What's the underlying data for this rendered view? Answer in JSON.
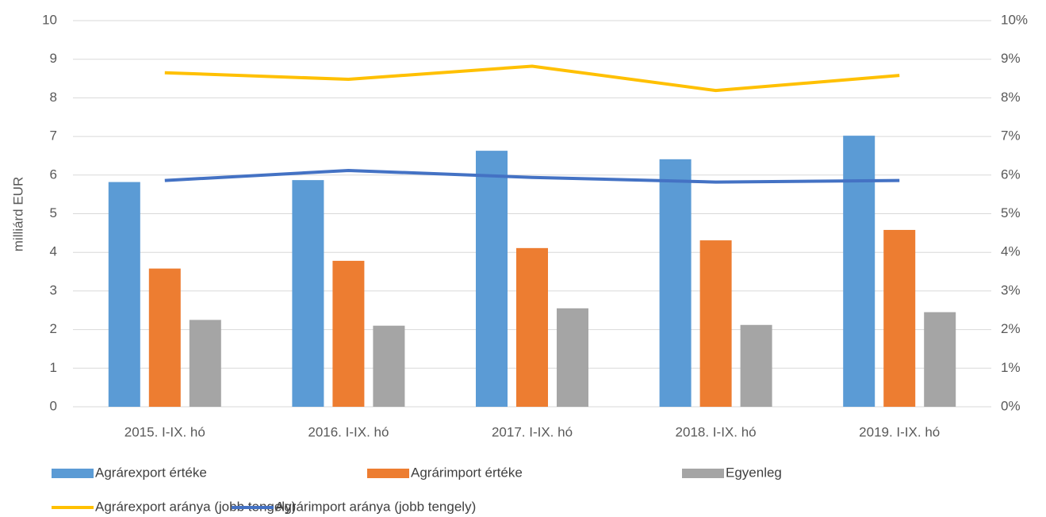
{
  "chart_data": {
    "type": "bar",
    "y_label": "milliárd EUR",
    "categories": [
      "2015. I-IX. hó",
      "2016. I-IX. hó",
      "2017. I-IX. hó",
      "2018. I-IX. hó",
      "2019. I-IX. hó"
    ],
    "series": [
      {
        "name": "Agrárexport értéke",
        "color": "#5b9bd5",
        "values": [
          5.82,
          5.87,
          6.63,
          6.41,
          7.02
        ]
      },
      {
        "name": "Agrárimport értéke",
        "color": "#ed7d31",
        "values": [
          3.58,
          3.78,
          4.11,
          4.31,
          4.58
        ]
      },
      {
        "name": "Egyenleg",
        "color": "#a5a5a5",
        "values": [
          2.25,
          2.1,
          2.55,
          2.12,
          2.45
        ]
      },
      {
        "name": "Agrárexport aránya (jobb tengely)",
        "color": "#ffc000",
        "type": "line",
        "axis": "y2",
        "values": [
          8.65,
          8.48,
          8.82,
          8.19,
          8.58
        ]
      },
      {
        "name": "Agrárimport aránya (jobb tengely)",
        "color": "#4472c4",
        "type": "line",
        "axis": "y2",
        "values": [
          5.86,
          6.12,
          5.94,
          5.82,
          5.86
        ]
      }
    ],
    "ylim": [
      0,
      10
    ],
    "yticks": [
      0,
      1,
      2,
      3,
      4,
      5,
      6,
      7,
      8,
      9,
      10
    ],
    "y2lim": [
      0,
      10
    ],
    "y2ticks": [
      {
        "value": 0,
        "label": "0%"
      },
      {
        "value": 1,
        "label": "1%"
      },
      {
        "value": 2,
        "label": "2%"
      },
      {
        "value": 3,
        "label": "3%"
      },
      {
        "value": 4,
        "label": "4%"
      },
      {
        "value": 5,
        "label": "5%"
      },
      {
        "value": 6,
        "label": "6%"
      },
      {
        "value": 7,
        "label": "7%"
      },
      {
        "value": 8,
        "label": "8%"
      },
      {
        "value": 9,
        "label": "9%"
      },
      {
        "value": 10,
        "label": "10%"
      }
    ],
    "grid": true
  }
}
